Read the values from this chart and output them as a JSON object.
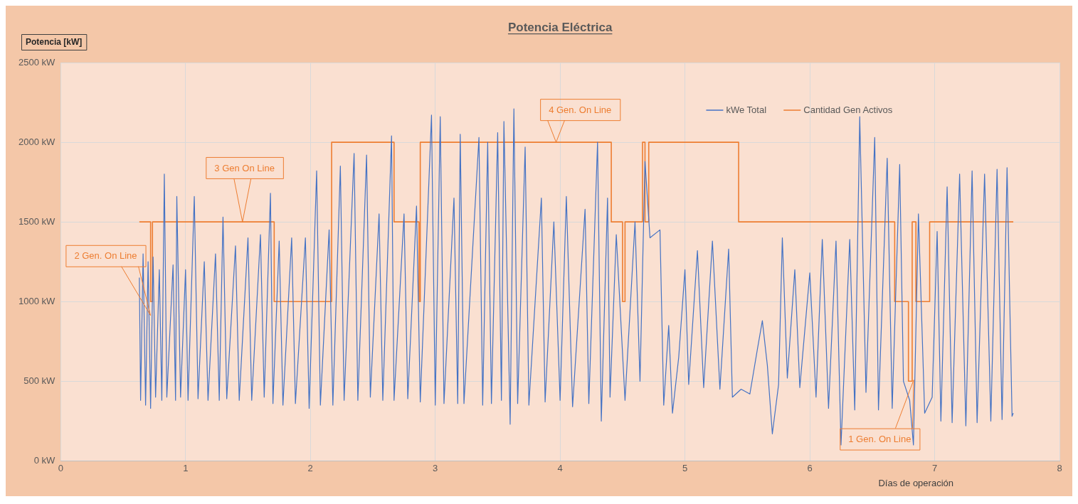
{
  "chart_data": {
    "type": "line",
    "title": "Potencia Eléctrica",
    "xlabel": "Días de operación",
    "ylabel": "Potencia [kW]",
    "xlim": [
      0,
      8
    ],
    "xticks": [
      0,
      1,
      2,
      3,
      4,
      5,
      6,
      7,
      8
    ],
    "ylim": [
      0,
      2500
    ],
    "yticks": [
      {
        "value": 0,
        "label": "0 kW"
      },
      {
        "value": 500,
        "label": "500 kW"
      },
      {
        "value": 1000,
        "label": "1000 kW"
      },
      {
        "value": 1500,
        "label": "1500 kW"
      },
      {
        "value": 2000,
        "label": "2000 kW"
      },
      {
        "value": 2500,
        "label": "2500 kW"
      }
    ],
    "grid": true,
    "legend": "top right",
    "series": [
      {
        "name": "kWe Total",
        "color": "#4472c4",
        "x": [
          0.63,
          0.64,
          0.66,
          0.68,
          0.7,
          0.72,
          0.74,
          0.76,
          0.79,
          0.81,
          0.83,
          0.85,
          0.9,
          0.92,
          0.93,
          0.96,
          1.0,
          1.02,
          1.07,
          1.1,
          1.15,
          1.18,
          1.24,
          1.27,
          1.3,
          1.33,
          1.4,
          1.43,
          1.5,
          1.53,
          1.6,
          1.63,
          1.68,
          1.7,
          1.75,
          1.78,
          1.85,
          1.88,
          1.96,
          1.99,
          2.05,
          2.08,
          2.15,
          2.18,
          2.24,
          2.27,
          2.35,
          2.38,
          2.45,
          2.48,
          2.55,
          2.58,
          2.65,
          2.67,
          2.75,
          2.78,
          2.85,
          2.88,
          2.97,
          3.0,
          3.04,
          3.07,
          3.15,
          3.18,
          3.2,
          3.23,
          3.35,
          3.38,
          3.42,
          3.45,
          3.5,
          3.53,
          3.55,
          3.6,
          3.63,
          3.66,
          3.72,
          3.75,
          3.85,
          3.88,
          3.95,
          4.0,
          4.05,
          4.1,
          4.2,
          4.23,
          4.3,
          4.33,
          4.38,
          4.4,
          4.45,
          4.52,
          4.6,
          4.64,
          4.68,
          4.72,
          4.8,
          4.83,
          4.87,
          4.9,
          4.95,
          5.0,
          5.03,
          5.1,
          5.15,
          5.22,
          5.28,
          5.35,
          5.38,
          5.45,
          5.52,
          5.58,
          5.62,
          5.66,
          5.7,
          5.75,
          5.78,
          5.82,
          5.88,
          5.92,
          6.0,
          6.05,
          6.1,
          6.15,
          6.21,
          6.25,
          6.32,
          6.36,
          6.4,
          6.45,
          6.52,
          6.55,
          6.62,
          6.66,
          6.72,
          6.75,
          6.8,
          6.83,
          6.87,
          6.92,
          6.98,
          7.02,
          7.05,
          7.1,
          7.14,
          7.2,
          7.25,
          7.3,
          7.34,
          7.4,
          7.45,
          7.5,
          7.54,
          7.58,
          7.62,
          7.63
        ],
        "values": [
          1150,
          380,
          1300,
          350,
          1250,
          330,
          1280,
          400,
          1200,
          380,
          1800,
          400,
          1230,
          380,
          1660,
          400,
          1200,
          380,
          1660,
          390,
          1250,
          380,
          1300,
          380,
          1530,
          390,
          1350,
          380,
          1400,
          380,
          1420,
          400,
          1680,
          360,
          1380,
          350,
          1400,
          360,
          1400,
          330,
          1820,
          350,
          1450,
          350,
          1850,
          380,
          1930,
          380,
          1920,
          400,
          1550,
          380,
          2040,
          380,
          1550,
          390,
          1600,
          370,
          2170,
          350,
          2160,
          360,
          1650,
          360,
          2050,
          360,
          2030,
          350,
          2000,
          360,
          2060,
          380,
          2130,
          230,
          2210,
          360,
          1970,
          350,
          1650,
          370,
          1500,
          380,
          1660,
          340,
          1580,
          360,
          2000,
          250,
          1650,
          400,
          1420,
          380,
          1500,
          500,
          1880,
          1400,
          1450,
          350,
          850,
          300,
          650,
          1200,
          480,
          1320,
          460,
          1380,
          450,
          1330,
          400,
          450,
          420,
          700,
          880,
          600,
          170,
          480,
          1400,
          520,
          1200,
          460,
          1180,
          400,
          1390,
          330,
          1380,
          100,
          1390,
          320,
          2160,
          430,
          2030,
          320,
          1900,
          330,
          1860,
          500,
          380,
          100,
          1550,
          300,
          400,
          1440,
          250,
          1720,
          240,
          1800,
          220,
          1820,
          240,
          1800,
          250,
          1830,
          260,
          1840,
          280,
          300
        ]
      },
      {
        "name": "Cantidad Gen Activos",
        "color": "#ed7d31",
        "type": "step",
        "x": [
          0.63,
          0.72,
          0.735,
          1.71,
          2.17,
          2.67,
          2.87,
          2.88,
          4.41,
          4.5,
          4.52,
          4.66,
          4.68,
          4.71,
          5.43,
          6.68,
          6.79,
          6.82,
          6.85,
          6.96,
          7.63
        ],
        "values": [
          1500,
          1000,
          1500,
          1000,
          2000,
          1500,
          1000,
          2000,
          1500,
          1000,
          1500,
          2000,
          1500,
          2000,
          1500,
          1000,
          500,
          1500,
          1000,
          1500,
          1500
        ]
      }
    ],
    "annotations": [
      "2 Gen. On Line",
      "3 Gen On Line",
      "4 Gen. On Line",
      "1 Gen. On Line"
    ]
  }
}
